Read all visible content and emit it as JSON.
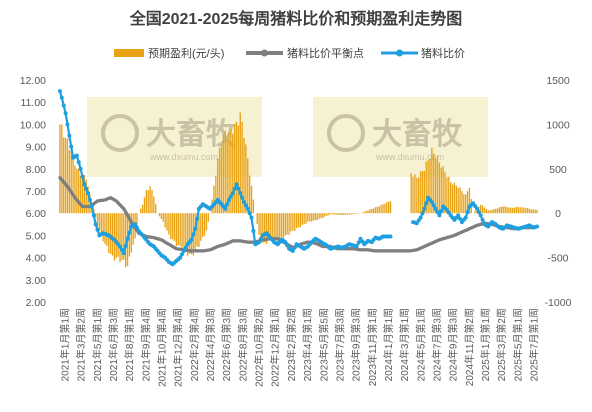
{
  "chart_data": {
    "type": "line",
    "title": "全国2021-2025每周猪料比价和预期盈利走势图",
    "watermark": {
      "brand": "大畜牧",
      "site": "www.dxumu.com"
    },
    "left_axis": {
      "ylim": [
        2.0,
        12.0
      ],
      "ticks": [
        "2.00",
        "3.00",
        "4.00",
        "5.00",
        "6.00",
        "7.00",
        "8.00",
        "9.00",
        "10.00",
        "11.00",
        "12.00"
      ]
    },
    "right_axis": {
      "ylim": [
        -1000,
        1500
      ],
      "ticks": [
        "-1000",
        "-500",
        "0",
        "500",
        "1000",
        "1500"
      ]
    },
    "x_tick_labels": [
      "2021年1月第1周",
      "2021年3月第2周",
      "2021年5月第1周",
      "2021年6月第3周",
      "2021年8月第1周",
      "2021年9月第4周",
      "2021年10月第4周",
      "2021年12月第4周",
      "2022年2月第4周",
      "2022年4月第3周",
      "2022年6月第3周",
      "2022年8月第3周",
      "2022年10月第2周",
      "2022年12月第1周",
      "2023年2月第2周",
      "2023年4月第1周",
      "2023年5月第5周",
      "2023年7月第3周",
      "2023年9月第3周",
      "2023年11月第1周",
      "2024年1月第1周",
      "2024年3月第1周",
      "2024年5月第1周",
      "2024年7月第3周",
      "2024年9月第3周",
      "2024年11月第2周",
      "2025年1月第1周",
      "2025年3月第2周",
      "2025年5月第1周",
      "2025年7月第1周"
    ],
    "legend": [
      "预期盈利(元/头)",
      "猪料比价平衡点",
      "猪料比价"
    ],
    "series": [
      {
        "name": "预期盈利(元/头)",
        "type": "bar",
        "axis": "right",
        "color": "#e8a317",
        "keyframes": [
          [
            0,
            1000
          ],
          [
            3,
            850
          ],
          [
            6,
            700
          ],
          [
            9,
            500
          ],
          [
            12,
            420
          ],
          [
            14,
            400
          ],
          [
            16,
            200
          ],
          [
            18,
            50
          ],
          [
            20,
            -150
          ],
          [
            24,
            -350
          ],
          [
            28,
            -500
          ],
          [
            32,
            -520
          ],
          [
            34,
            -550
          ],
          [
            36,
            -600
          ],
          [
            38,
            -420
          ],
          [
            40,
            -300
          ],
          [
            42,
            0
          ],
          [
            44,
            100
          ],
          [
            46,
            250
          ],
          [
            48,
            300
          ],
          [
            50,
            200
          ],
          [
            52,
            0
          ],
          [
            55,
            -100
          ],
          [
            58,
            -250
          ],
          [
            62,
            -350
          ],
          [
            66,
            -420
          ],
          [
            70,
            -480
          ],
          [
            74,
            -360
          ],
          [
            78,
            -200
          ],
          [
            80,
            0
          ],
          [
            82,
            300
          ],
          [
            84,
            600
          ],
          [
            86,
            820
          ],
          [
            88,
            900
          ],
          [
            90,
            880
          ],
          [
            92,
            950
          ],
          [
            94,
            1000
          ],
          [
            96,
            1100
          ],
          [
            98,
            900
          ],
          [
            100,
            600
          ],
          [
            102,
            300
          ],
          [
            104,
            0
          ],
          [
            106,
            -250
          ],
          [
            108,
            -350
          ],
          [
            112,
            -300
          ],
          [
            116,
            -300
          ],
          [
            120,
            -260
          ],
          [
            124,
            -200
          ],
          [
            128,
            -150
          ],
          [
            132,
            -100
          ],
          [
            136,
            -80
          ],
          [
            140,
            -50
          ],
          [
            144,
            -10
          ],
          [
            148,
            -20
          ],
          [
            152,
            -20
          ],
          [
            156,
            -10
          ],
          [
            160,
            0
          ],
          [
            166,
            50
          ],
          [
            170,
            80
          ],
          [
            174,
            120
          ],
          [
            176,
            140
          ],
          [
            177,
            0
          ],
          [
            178,
            0
          ],
          [
            186,
            0
          ],
          [
            187,
            450
          ],
          [
            190,
            400
          ],
          [
            194,
            500
          ],
          [
            198,
            700
          ],
          [
            200,
            650
          ],
          [
            204,
            500
          ],
          [
            208,
            350
          ],
          [
            212,
            300
          ],
          [
            216,
            200
          ],
          [
            218,
            300
          ],
          [
            220,
            0
          ],
          [
            224,
            100
          ],
          [
            228,
            30
          ],
          [
            232,
            50
          ],
          [
            236,
            80
          ],
          [
            240,
            60
          ],
          [
            244,
            70
          ],
          [
            248,
            60
          ],
          [
            252,
            40
          ],
          [
            254,
            40
          ]
        ]
      },
      {
        "name": "猪料比价平衡点",
        "type": "line",
        "axis": "left",
        "color": "#7f7f7f",
        "keyframes": [
          [
            0,
            7.6
          ],
          [
            4,
            7.2
          ],
          [
            8,
            6.7
          ],
          [
            12,
            6.3
          ],
          [
            16,
            6.3
          ],
          [
            20,
            6.55
          ],
          [
            24,
            6.6
          ],
          [
            27,
            6.7
          ],
          [
            30,
            6.55
          ],
          [
            34,
            6.2
          ],
          [
            38,
            5.6
          ],
          [
            42,
            5.1
          ],
          [
            46,
            4.95
          ],
          [
            50,
            4.9
          ],
          [
            54,
            4.8
          ],
          [
            58,
            4.6
          ],
          [
            62,
            4.4
          ],
          [
            66,
            4.35
          ],
          [
            70,
            4.3
          ],
          [
            76,
            4.3
          ],
          [
            80,
            4.35
          ],
          [
            84,
            4.5
          ],
          [
            88,
            4.6
          ],
          [
            92,
            4.75
          ],
          [
            96,
            4.75
          ],
          [
            100,
            4.7
          ],
          [
            104,
            4.7
          ],
          [
            108,
            4.8
          ],
          [
            112,
            4.85
          ],
          [
            116,
            4.85
          ],
          [
            120,
            4.65
          ],
          [
            124,
            4.45
          ],
          [
            128,
            4.6
          ],
          [
            132,
            4.7
          ],
          [
            136,
            4.65
          ],
          [
            140,
            4.5
          ],
          [
            144,
            4.5
          ],
          [
            148,
            4.4
          ],
          [
            152,
            4.4
          ],
          [
            156,
            4.4
          ],
          [
            160,
            4.35
          ],
          [
            164,
            4.35
          ],
          [
            168,
            4.3
          ],
          [
            172,
            4.3
          ],
          [
            176,
            4.3
          ],
          [
            186,
            4.3
          ],
          [
            190,
            4.35
          ],
          [
            194,
            4.5
          ],
          [
            198,
            4.65
          ],
          [
            202,
            4.8
          ],
          [
            206,
            4.9
          ],
          [
            210,
            5.0
          ],
          [
            214,
            5.15
          ],
          [
            218,
            5.3
          ],
          [
            222,
            5.45
          ],
          [
            226,
            5.55
          ],
          [
            230,
            5.5
          ],
          [
            234,
            5.4
          ],
          [
            238,
            5.35
          ],
          [
            242,
            5.3
          ],
          [
            246,
            5.35
          ],
          [
            250,
            5.35
          ],
          [
            254,
            5.4
          ]
        ]
      },
      {
        "name": "猪料比价",
        "type": "line",
        "axis": "left",
        "color": "#1f9fe0",
        "keyframes": [
          [
            0,
            11.5
          ],
          [
            1,
            11.2
          ],
          [
            3,
            10.5
          ],
          [
            5,
            9.5
          ],
          [
            7,
            8.5
          ],
          [
            9,
            8.6
          ],
          [
            11,
            8.0
          ],
          [
            13,
            7.3
          ],
          [
            15,
            6.9
          ],
          [
            17,
            6.3
          ],
          [
            19,
            5.5
          ],
          [
            21,
            5.0
          ],
          [
            23,
            5.1
          ],
          [
            26,
            5.0
          ],
          [
            29,
            4.8
          ],
          [
            32,
            4.5
          ],
          [
            34,
            4.2
          ],
          [
            36,
            4.85
          ],
          [
            38,
            5.4
          ],
          [
            40,
            5.5
          ],
          [
            42,
            5.2
          ],
          [
            44,
            5.0
          ],
          [
            46,
            4.8
          ],
          [
            48,
            4.6
          ],
          [
            50,
            4.5
          ],
          [
            52,
            4.3
          ],
          [
            54,
            4.1
          ],
          [
            56,
            4.0
          ],
          [
            58,
            3.8
          ],
          [
            60,
            3.7
          ],
          [
            62,
            3.85
          ],
          [
            64,
            4.0
          ],
          [
            66,
            4.3
          ],
          [
            68,
            4.6
          ],
          [
            70,
            4.8
          ],
          [
            72,
            5.3
          ],
          [
            74,
            6.2
          ],
          [
            76,
            6.4
          ],
          [
            78,
            6.3
          ],
          [
            80,
            6.2
          ],
          [
            82,
            6.4
          ],
          [
            84,
            6.6
          ],
          [
            86,
            6.4
          ],
          [
            88,
            6.2
          ],
          [
            90,
            6.6
          ],
          [
            92,
            6.9
          ],
          [
            94,
            7.3
          ],
          [
            96,
            6.9
          ],
          [
            98,
            6.5
          ],
          [
            100,
            6.2
          ],
          [
            102,
            5.8
          ],
          [
            104,
            4.6
          ],
          [
            106,
            4.7
          ],
          [
            108,
            5.0
          ],
          [
            110,
            5.1
          ],
          [
            112,
            4.9
          ],
          [
            114,
            4.7
          ],
          [
            116,
            4.6
          ],
          [
            118,
            4.8
          ],
          [
            120,
            4.7
          ],
          [
            122,
            4.4
          ],
          [
            124,
            4.3
          ],
          [
            126,
            4.6
          ],
          [
            128,
            4.5
          ],
          [
            130,
            4.4
          ],
          [
            132,
            4.5
          ],
          [
            134,
            4.7
          ],
          [
            136,
            4.85
          ],
          [
            138,
            4.75
          ],
          [
            140,
            4.65
          ],
          [
            142,
            4.55
          ],
          [
            144,
            4.4
          ],
          [
            146,
            4.45
          ],
          [
            148,
            4.5
          ],
          [
            150,
            4.45
          ],
          [
            152,
            4.5
          ],
          [
            154,
            4.6
          ],
          [
            156,
            4.55
          ],
          [
            158,
            4.5
          ],
          [
            160,
            4.85
          ],
          [
            162,
            4.6
          ],
          [
            164,
            4.75
          ],
          [
            166,
            4.7
          ],
          [
            168,
            4.9
          ],
          [
            170,
            4.85
          ],
          [
            172,
            4.95
          ],
          [
            174,
            4.95
          ],
          [
            176,
            4.95
          ],
          [
            188,
            5.6
          ],
          [
            190,
            5.55
          ],
          [
            192,
            5.8
          ],
          [
            194,
            6.2
          ],
          [
            196,
            6.7
          ],
          [
            198,
            6.5
          ],
          [
            200,
            6.2
          ],
          [
            202,
            5.9
          ],
          [
            204,
            6.3
          ],
          [
            206,
            6.15
          ],
          [
            208,
            5.9
          ],
          [
            210,
            5.7
          ],
          [
            212,
            5.9
          ],
          [
            214,
            5.6
          ],
          [
            216,
            5.8
          ],
          [
            218,
            6.3
          ],
          [
            220,
            6.45
          ],
          [
            222,
            6.2
          ],
          [
            224,
            5.9
          ],
          [
            226,
            5.5
          ],
          [
            228,
            5.4
          ],
          [
            230,
            5.6
          ],
          [
            232,
            5.5
          ],
          [
            234,
            5.35
          ],
          [
            236,
            5.3
          ],
          [
            238,
            5.45
          ],
          [
            240,
            5.4
          ],
          [
            242,
            5.35
          ],
          [
            244,
            5.3
          ],
          [
            246,
            5.35
          ],
          [
            248,
            5.4
          ],
          [
            250,
            5.45
          ],
          [
            252,
            5.35
          ],
          [
            254,
            5.4
          ]
        ]
      }
    ]
  }
}
